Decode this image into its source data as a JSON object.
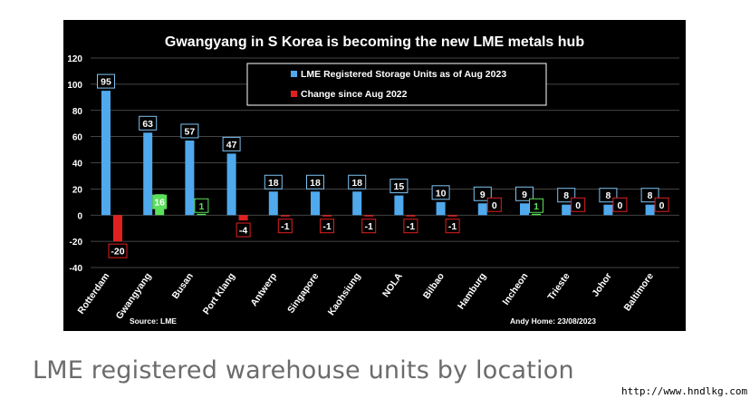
{
  "chart_data": {
    "type": "bar",
    "title": "Gwangyang in S Korea is becoming the new LME metals hub",
    "categories": [
      "Rotterdam",
      "Gwangyang",
      "Busan",
      "Port Klang",
      "Antwerp",
      "Singapore",
      "Kaohsiung",
      "NOLA",
      "Bilbao",
      "Hamburg",
      "Incheon",
      "Trieste",
      "Johor",
      "Baltimore"
    ],
    "series": [
      {
        "name": "LME Registered Storage Units as of Aug 2023",
        "color": "#4fa9ec",
        "values": [
          95,
          63,
          57,
          47,
          18,
          18,
          18,
          15,
          10,
          9,
          9,
          8,
          8,
          8
        ]
      },
      {
        "name": "Change since Aug 2022",
        "color": "#e02020",
        "values": [
          -20,
          16,
          1,
          -4,
          -1,
          -1,
          -1,
          -1,
          -1,
          0,
          1,
          0,
          0,
          0
        ]
      }
    ],
    "positive_change_color": "#5be05b",
    "yticks": [
      -40,
      -20,
      0,
      20,
      40,
      60,
      80,
      100,
      120
    ],
    "ylim": [
      -40,
      120
    ],
    "grid": true,
    "legend_position": "top-center",
    "annotations": {
      "source": "Source: LME",
      "author": "Andy Home: 23/08/2023"
    }
  },
  "caption": "LME registered warehouse units by location",
  "watermark": "http://www.hndlkg.com"
}
